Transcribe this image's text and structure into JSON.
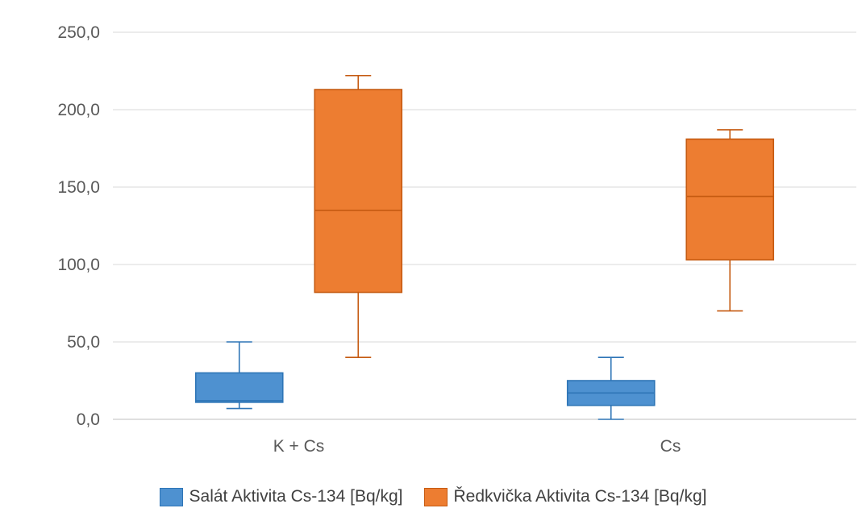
{
  "chart_data": {
    "type": "box",
    "categories": [
      "K + Cs",
      "Cs"
    ],
    "y_ticks": [
      "0,0",
      "50,0",
      "100,0",
      "150,0",
      "200,0",
      "250,0"
    ],
    "ylim": [
      0,
      250
    ],
    "grid": true,
    "legend_position": "bottom",
    "series": [
      {
        "name": "Salát Aktivita Cs-134 [Bq/kg]",
        "color": "#4e91d0",
        "stroke": "#2e75b6",
        "boxes": [
          {
            "min": 7,
            "q1": 11,
            "median": 12,
            "q3": 30,
            "max": 50
          },
          {
            "min": 0,
            "q1": 9,
            "median": 17,
            "q3": 25,
            "max": 40
          }
        ]
      },
      {
        "name": "Ředkvička Aktivita Cs-134 [Bq/kg]",
        "color": "#ed7d31",
        "stroke": "#c55a11",
        "boxes": [
          {
            "min": 40,
            "q1": 82,
            "median": 135,
            "q3": 213,
            "max": 222
          },
          {
            "min": 70,
            "q1": 103,
            "median": 144,
            "q3": 181,
            "max": 187
          }
        ]
      }
    ]
  }
}
